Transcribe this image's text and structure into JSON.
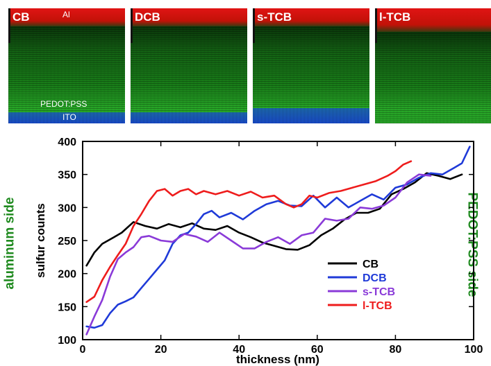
{
  "panels": [
    {
      "label": "CB"
    },
    {
      "label": "DCB"
    },
    {
      "label": "s-TCB"
    },
    {
      "label": "l-TCB"
    }
  ],
  "panel_annotations": {
    "al": "Al",
    "pedot": "PEDOT:PSS",
    "ito": "ITO"
  },
  "side_labels": {
    "left": "aluminum side",
    "right": "PEDOT:PSS side"
  },
  "colors": {
    "al": "#e01414",
    "active": "#1b8a1b",
    "ito": "#1a4fd8",
    "side_label": "#1f8a1f"
  },
  "chart_data": {
    "type": "line",
    "xlabel": "thickness (nm)",
    "ylabel": "sulfur counts",
    "xlim": [
      0,
      100
    ],
    "ylim": [
      100,
      400
    ],
    "xticks": [
      0,
      20,
      40,
      60,
      80,
      100
    ],
    "yticks": [
      100,
      150,
      200,
      250,
      300,
      350,
      400
    ],
    "grid": false,
    "legend": "bottom-right",
    "series": [
      {
        "name": "CB",
        "color": "#000000",
        "x": [
          1,
          3,
          5,
          8,
          10,
          13,
          16,
          19,
          22,
          25,
          28,
          31,
          34,
          37,
          40,
          43,
          46,
          49,
          52,
          55,
          58,
          61,
          64,
          67,
          70,
          73,
          76,
          79,
          82,
          85,
          88,
          91,
          94,
          97
        ],
        "y": [
          212,
          232,
          245,
          255,
          262,
          278,
          272,
          268,
          275,
          270,
          276,
          268,
          266,
          272,
          262,
          255,
          247,
          242,
          237,
          236,
          243,
          258,
          268,
          282,
          292,
          292,
          298,
          320,
          328,
          338,
          352,
          348,
          343,
          350
        ]
      },
      {
        "name": "DCB",
        "color": "#1f3ad8",
        "x": [
          1,
          3,
          5,
          7,
          9,
          11,
          13,
          15,
          17,
          19,
          21,
          23,
          25,
          27,
          29,
          31,
          33,
          35,
          38,
          41,
          44,
          47,
          50,
          53,
          56,
          59,
          62,
          65,
          68,
          71,
          74,
          77,
          80,
          83,
          86,
          89,
          92,
          95,
          97,
          99
        ],
        "y": [
          120,
          118,
          122,
          140,
          153,
          158,
          164,
          178,
          192,
          206,
          220,
          245,
          258,
          262,
          275,
          290,
          295,
          285,
          292,
          282,
          295,
          305,
          310,
          303,
          302,
          318,
          300,
          315,
          300,
          310,
          320,
          312,
          330,
          335,
          345,
          352,
          350,
          360,
          367,
          392
        ]
      },
      {
        "name": "s-TCB",
        "color": "#8a3ad8",
        "x": [
          1,
          3,
          5,
          7,
          9,
          11,
          13,
          15,
          17,
          20,
          23,
          26,
          29,
          32,
          35,
          38,
          41,
          44,
          47,
          50,
          53,
          56,
          59,
          62,
          65,
          68,
          71,
          74,
          77,
          80,
          83,
          86,
          89
        ],
        "y": [
          108,
          135,
          160,
          195,
          222,
          232,
          240,
          255,
          257,
          250,
          248,
          260,
          256,
          248,
          262,
          250,
          238,
          238,
          248,
          255,
          245,
          258,
          262,
          283,
          280,
          283,
          300,
          298,
          303,
          315,
          338,
          350,
          348
        ]
      },
      {
        "name": "l-TCB",
        "color": "#ee1c1c",
        "x": [
          1,
          3,
          5,
          7,
          9,
          11,
          13,
          15,
          17,
          19,
          21,
          23,
          25,
          27,
          29,
          31,
          34,
          37,
          40,
          43,
          46,
          49,
          52,
          54,
          56,
          58,
          60,
          63,
          66,
          69,
          72,
          75,
          78,
          80,
          82,
          84
        ],
        "y": [
          157,
          165,
          190,
          210,
          228,
          245,
          272,
          290,
          310,
          325,
          328,
          318,
          325,
          328,
          320,
          325,
          320,
          325,
          318,
          324,
          315,
          318,
          305,
          300,
          305,
          318,
          315,
          322,
          325,
          330,
          335,
          340,
          348,
          355,
          365,
          370
        ]
      }
    ]
  }
}
